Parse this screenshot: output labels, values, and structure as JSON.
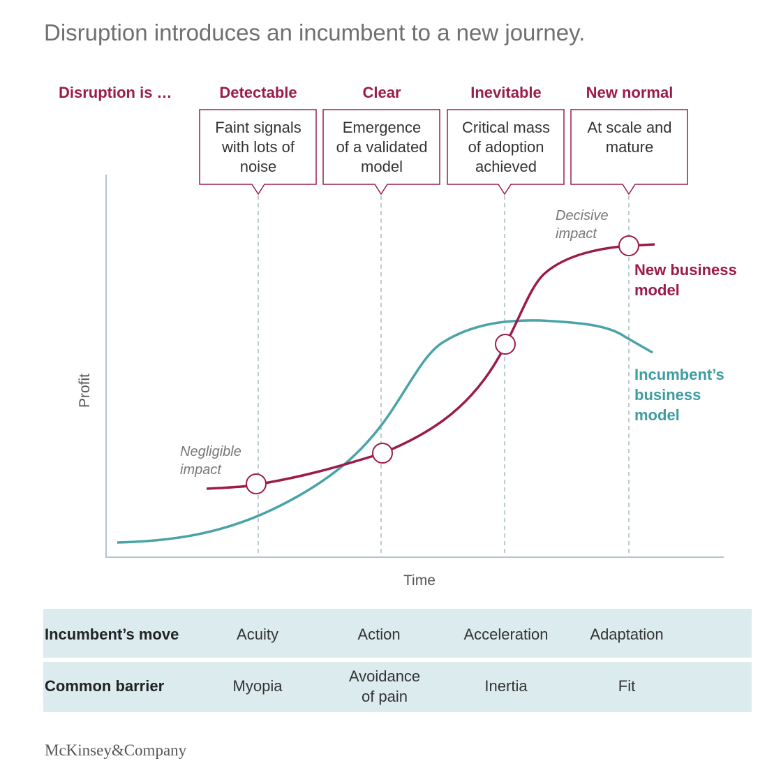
{
  "title": "Disruption introduces an incumbent to a new journey.",
  "stages_heading": "Disruption is …",
  "stages": [
    {
      "label": "Detectable",
      "callout": [
        "Faint signals",
        "with lots of",
        "noise"
      ]
    },
    {
      "label": "Clear",
      "callout": [
        "Emergence",
        "of a validated",
        "model"
      ]
    },
    {
      "label": "Inevitable",
      "callout": [
        "Critical mass",
        "of adoption",
        "achieved"
      ]
    },
    {
      "label": "New normal",
      "callout": [
        "At scale and",
        "mature"
      ]
    }
  ],
  "annotations": {
    "negligible": [
      "Negligible",
      "impact"
    ],
    "decisive": [
      "Decisive",
      "impact"
    ]
  },
  "series": {
    "new": [
      "New business",
      "model"
    ],
    "incumbent": [
      "Incumbent’s",
      "business",
      "model"
    ]
  },
  "axes": {
    "x": "Time",
    "y": "Profit"
  },
  "table": {
    "rows": [
      {
        "head": "Incumbent’s move",
        "cells": [
          [
            "Acuity"
          ],
          [
            "Action"
          ],
          [
            "Acceleration"
          ],
          [
            "Adaptation"
          ]
        ]
      },
      {
        "head": "Common barrier",
        "cells": [
          [
            "Myopia"
          ],
          [
            "Avoidance",
            "of pain"
          ],
          [
            "Inertia"
          ],
          [
            "Fit"
          ]
        ]
      }
    ]
  },
  "brand": "McKinsey&Company",
  "colors": {
    "new": "#9b1b4a",
    "incumbent": "#4aa3a8",
    "guide": "#a9bcc4"
  }
}
